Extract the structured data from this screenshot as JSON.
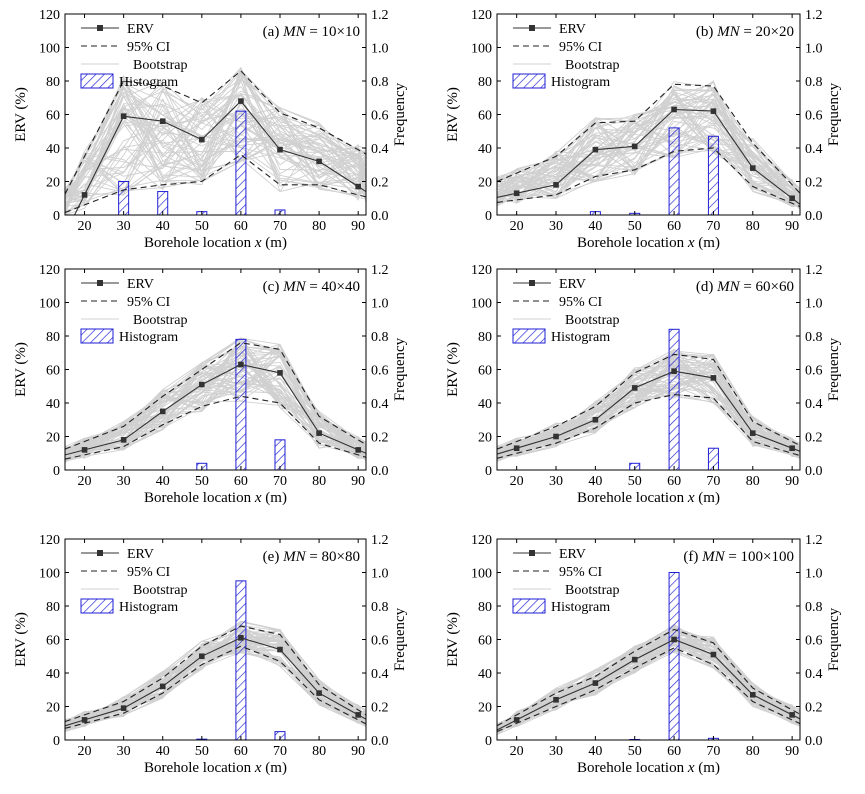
{
  "chart_data": [
    {
      "type": "line",
      "panel_label": "(a)",
      "mn_label": "MN",
      "mn_value": "= 10×10",
      "xlabel": "Borehole location x (m)",
      "ylabel": "ERV (%)",
      "ylabel_right": "Frequency",
      "xlim": [
        15,
        92
      ],
      "ylim": [
        0,
        120
      ],
      "ylim_right": [
        0,
        1.2
      ],
      "xticks": [
        20,
        30,
        40,
        50,
        60,
        70,
        80,
        90
      ],
      "yticks": [
        0,
        20,
        40,
        60,
        80,
        100,
        120
      ],
      "yticks_right": [
        0.0,
        0.2,
        0.4,
        0.6,
        0.8,
        1.0,
        1.2
      ],
      "legend": [
        "ERV",
        "95% CI",
        "Bootstrap",
        "Histogram"
      ],
      "x": [
        20,
        30,
        40,
        50,
        60,
        70,
        80,
        90
      ],
      "series": [
        {
          "name": "ERV",
          "style": "solid-square",
          "values": [
            12,
            59,
            56,
            45,
            68,
            39,
            32,
            17
          ]
        },
        {
          "name": "95% CI upper",
          "style": "dashed",
          "values": [
            35,
            80,
            77,
            67,
            86,
            61,
            52,
            39
          ]
        },
        {
          "name": "95% CI lower",
          "style": "dashed",
          "values": [
            6,
            15,
            18,
            20,
            36,
            18,
            18,
            12
          ]
        }
      ],
      "bootstrap_band": {
        "upper": [
          38,
          83,
          80,
          70,
          88,
          64,
          55,
          42
        ],
        "lower": [
          4,
          12,
          15,
          17,
          32,
          14,
          15,
          9
        ]
      },
      "histogram": {
        "x": [
          30,
          40,
          50,
          60,
          70
        ],
        "values": [
          0.2,
          0.14,
          0.02,
          0.62,
          0.03
        ]
      }
    },
    {
      "type": "line",
      "panel_label": "(b)",
      "mn_label": "MN",
      "mn_value": "= 20×20",
      "xlabel": "Borehole location x (m)",
      "ylabel": "ERV (%)",
      "ylabel_right": "Frequency",
      "xlim": [
        15,
        92
      ],
      "ylim": [
        0,
        120
      ],
      "ylim_right": [
        0,
        1.2
      ],
      "xticks": [
        20,
        30,
        40,
        50,
        60,
        70,
        80,
        90
      ],
      "yticks": [
        0,
        20,
        40,
        60,
        80,
        100,
        120
      ],
      "yticks_right": [
        0.0,
        0.2,
        0.4,
        0.6,
        0.8,
        1.0,
        1.2
      ],
      "legend": [
        "ERV",
        "95% CI",
        "Bootstrap",
        "Histogram"
      ],
      "x": [
        20,
        30,
        40,
        50,
        60,
        70,
        80,
        90
      ],
      "series": [
        {
          "name": "ERV",
          "style": "solid-square",
          "values": [
            13,
            18,
            39,
            41,
            63,
            62,
            28,
            10
          ]
        },
        {
          "name": "95% CI upper",
          "style": "dashed",
          "values": [
            25,
            35,
            55,
            56,
            78,
            77,
            43,
            18
          ]
        },
        {
          "name": "95% CI lower",
          "style": "dashed",
          "values": [
            9,
            12,
            23,
            27,
            38,
            40,
            17,
            7
          ]
        }
      ],
      "bootstrap_band": {
        "upper": [
          28,
          38,
          58,
          60,
          80,
          80,
          46,
          21
        ],
        "lower": [
          7,
          10,
          20,
          24,
          34,
          37,
          14,
          5
        ]
      },
      "histogram": {
        "x": [
          40,
          50,
          60,
          70
        ],
        "values": [
          0.02,
          0.01,
          0.52,
          0.47
        ]
      }
    },
    {
      "type": "line",
      "panel_label": "(c)",
      "mn_label": "MN",
      "mn_value": "= 40×40",
      "xlabel": "Borehole location x (m)",
      "ylabel": "ERV (%)",
      "ylabel_right": "Frequency",
      "xlim": [
        15,
        92
      ],
      "ylim": [
        0,
        120
      ],
      "ylim_right": [
        0,
        1.2
      ],
      "xticks": [
        20,
        30,
        40,
        50,
        60,
        70,
        80,
        90
      ],
      "yticks": [
        0,
        20,
        40,
        60,
        80,
        100,
        120
      ],
      "yticks_right": [
        0.0,
        0.2,
        0.4,
        0.6,
        0.8,
        1.0,
        1.2
      ],
      "legend": [
        "ERV",
        "95% CI",
        "Bootstrap",
        "Histogram"
      ],
      "x": [
        20,
        30,
        40,
        50,
        60,
        70,
        80,
        90
      ],
      "series": [
        {
          "name": "ERV",
          "style": "solid-square",
          "values": [
            12,
            18,
            35,
            51,
            63,
            58,
            22,
            12
          ]
        },
        {
          "name": "95% CI upper",
          "style": "dashed",
          "values": [
            17,
            26,
            44,
            60,
            76,
            72,
            32,
            18
          ]
        },
        {
          "name": "95% CI lower",
          "style": "dashed",
          "values": [
            9,
            14,
            27,
            38,
            44,
            40,
            16,
            9
          ]
        }
      ],
      "bootstrap_band": {
        "upper": [
          19,
          29,
          48,
          64,
          79,
          75,
          35,
          20
        ],
        "lower": [
          7,
          12,
          24,
          35,
          41,
          37,
          13,
          7
        ]
      },
      "histogram": {
        "x": [
          50,
          60,
          70
        ],
        "values": [
          0.04,
          0.78,
          0.18
        ]
      }
    },
    {
      "type": "line",
      "panel_label": "(d)",
      "mn_label": "MN",
      "mn_value": "= 60×60",
      "xlabel": "Borehole location x (m)",
      "ylabel": "ERV (%)",
      "ylabel_right": "Frequency",
      "xlim": [
        15,
        92
      ],
      "ylim": [
        0,
        120
      ],
      "ylim_right": [
        0,
        1.2
      ],
      "xticks": [
        20,
        30,
        40,
        50,
        60,
        70,
        80,
        90
      ],
      "yticks": [
        0,
        20,
        40,
        60,
        80,
        100,
        120
      ],
      "yticks_right": [
        0.0,
        0.2,
        0.4,
        0.6,
        0.8,
        1.0,
        1.2
      ],
      "legend": [
        "ERV",
        "95% CI",
        "Bootstrap",
        "Histogram"
      ],
      "x": [
        20,
        30,
        40,
        50,
        60,
        70,
        80,
        90
      ],
      "series": [
        {
          "name": "ERV",
          "style": "solid-square",
          "values": [
            13,
            20,
            30,
            49,
            59,
            55,
            22,
            13
          ]
        },
        {
          "name": "95% CI upper",
          "style": "dashed",
          "values": [
            17,
            26,
            38,
            58,
            69,
            66,
            29,
            17
          ]
        },
        {
          "name": "95% CI lower",
          "style": "dashed",
          "values": [
            10,
            16,
            25,
            40,
            45,
            43,
            17,
            10
          ]
        }
      ],
      "bootstrap_band": {
        "upper": [
          19,
          28,
          41,
          61,
          72,
          69,
          32,
          19
        ],
        "lower": [
          8,
          14,
          22,
          37,
          42,
          40,
          14,
          8
        ]
      },
      "histogram": {
        "x": [
          50,
          60,
          70
        ],
        "values": [
          0.04,
          0.84,
          0.13
        ]
      }
    },
    {
      "type": "line",
      "panel_label": "(e)",
      "mn_label": "MN",
      "mn_value": "= 80×80",
      "xlabel": "Borehole location x (m)",
      "ylabel": "ERV (%)",
      "ylabel_right": "Frequency",
      "xlim": [
        15,
        92
      ],
      "ylim": [
        0,
        120
      ],
      "ylim_right": [
        0,
        1.2
      ],
      "xticks": [
        20,
        30,
        40,
        50,
        60,
        70,
        80,
        90
      ],
      "yticks": [
        0,
        20,
        40,
        60,
        80,
        100,
        120
      ],
      "yticks_right": [
        0.0,
        0.2,
        0.4,
        0.6,
        0.8,
        1.0,
        1.2
      ],
      "legend": [
        "ERV",
        "95% CI",
        "Bootstrap",
        "Histogram"
      ],
      "x": [
        20,
        30,
        40,
        50,
        60,
        70,
        80,
        90
      ],
      "series": [
        {
          "name": "ERV",
          "style": "solid-square",
          "values": [
            12,
            19,
            32,
            50,
            61,
            54,
            28,
            15
          ]
        },
        {
          "name": "95% CI upper",
          "style": "dashed",
          "values": [
            15,
            23,
            37,
            56,
            68,
            63,
            33,
            18
          ]
        },
        {
          "name": "95% CI lower",
          "style": "dashed",
          "values": [
            10,
            16,
            28,
            45,
            56,
            47,
            24,
            12
          ]
        }
      ],
      "bootstrap_band": {
        "upper": [
          17,
          26,
          41,
          59,
          71,
          66,
          36,
          21
        ],
        "lower": [
          8,
          14,
          25,
          42,
          52,
          44,
          21,
          10
        ]
      },
      "histogram": {
        "x": [
          50,
          60,
          70
        ],
        "values": [
          0.005,
          0.95,
          0.05
        ]
      }
    },
    {
      "type": "line",
      "panel_label": "(f)",
      "mn_label": "MN",
      "mn_value": "= 100×100",
      "xlabel": "Borehole location x (m)",
      "ylabel": "ERV (%)",
      "ylabel_right": "Frequency",
      "xlim": [
        15,
        92
      ],
      "ylim": [
        0,
        120
      ],
      "ylim_right": [
        0,
        1.2
      ],
      "xticks": [
        20,
        30,
        40,
        50,
        60,
        70,
        80,
        90
      ],
      "yticks": [
        0,
        20,
        40,
        60,
        80,
        100,
        120
      ],
      "yticks_right": [
        0.0,
        0.2,
        0.4,
        0.6,
        0.8,
        1.0,
        1.2
      ],
      "legend": [
        "ERV",
        "95% CI",
        "Bootstrap",
        "Histogram"
      ],
      "x": [
        20,
        30,
        40,
        50,
        60,
        70,
        80,
        90
      ],
      "series": [
        {
          "name": "ERV",
          "style": "solid-square",
          "values": [
            12,
            24,
            34,
            48,
            60,
            51,
            27,
            15
          ]
        },
        {
          "name": "95% CI upper",
          "style": "dashed",
          "values": [
            15,
            28,
            38,
            53,
            66,
            58,
            31,
            18
          ]
        },
        {
          "name": "95% CI lower",
          "style": "dashed",
          "values": [
            10,
            20,
            30,
            43,
            55,
            45,
            23,
            12
          ]
        }
      ],
      "bootstrap_band": {
        "upper": [
          17,
          31,
          42,
          56,
          69,
          62,
          34,
          21
        ],
        "lower": [
          8,
          18,
          27,
          40,
          52,
          42,
          20,
          10
        ]
      },
      "histogram": {
        "x": [
          50,
          60,
          70
        ],
        "values": [
          0.003,
          1.0,
          0.01
        ]
      }
    }
  ],
  "colors": {
    "erv_line": "#333333",
    "ci_line": "#222222",
    "bootstrap": "#d0d0d0",
    "histogram": "#1f1fd6",
    "axis": "#000000"
  }
}
